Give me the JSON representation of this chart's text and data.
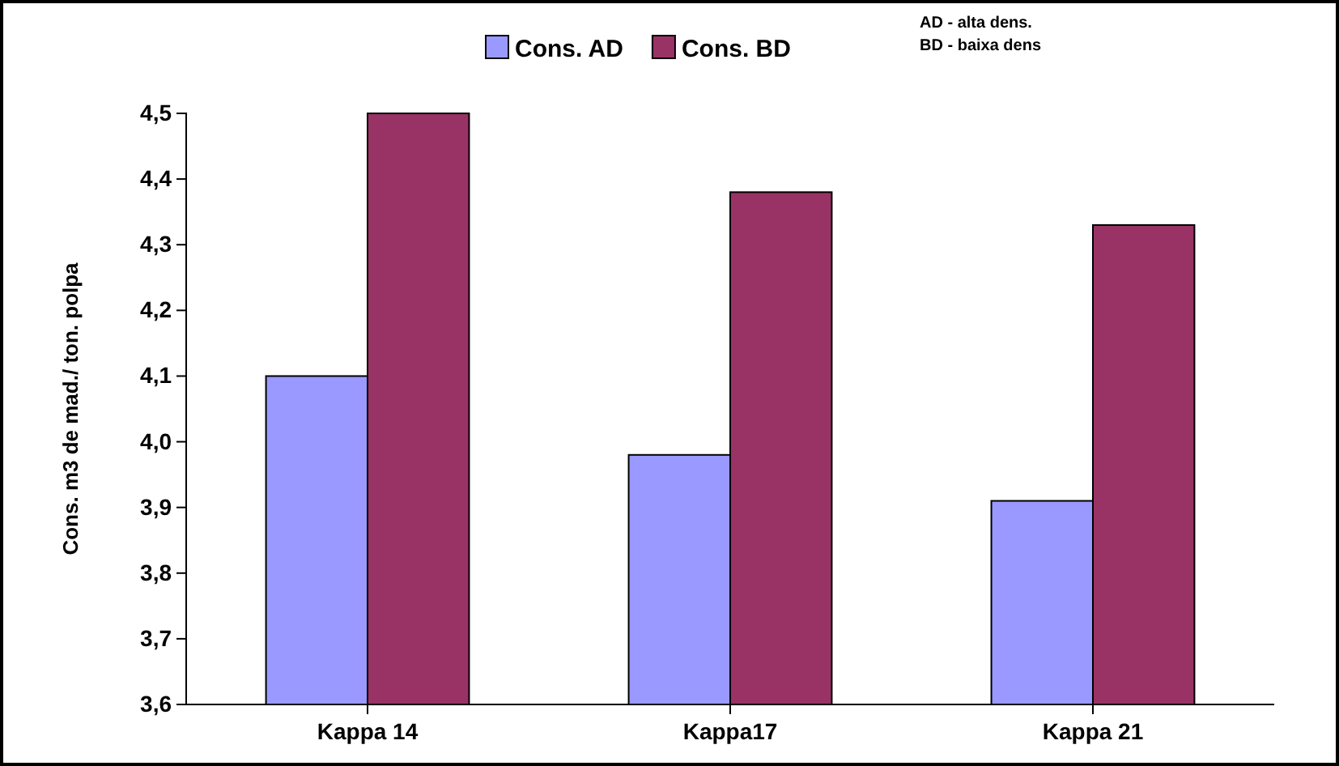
{
  "chart_data": {
    "type": "bar",
    "categories": [
      "Kappa 14",
      "Kappa17",
      "Kappa 21"
    ],
    "series": [
      {
        "name": "Cons. AD",
        "color": "#9999ff",
        "values": [
          4.1,
          3.98,
          3.91
        ]
      },
      {
        "name": "Cons. BD",
        "color": "#993366",
        "values": [
          4.5,
          4.38,
          4.33
        ]
      }
    ],
    "ylabel": "Cons. m3 de mad./ ton. polpa",
    "ylim": [
      3.6,
      4.5
    ],
    "yticks": [
      {
        "value": 3.6,
        "label": "3,6"
      },
      {
        "value": 3.7,
        "label": "3,7"
      },
      {
        "value": 3.8,
        "label": "3,8"
      },
      {
        "value": 3.9,
        "label": "3,9"
      },
      {
        "value": 4.0,
        "label": "4,0"
      },
      {
        "value": 4.1,
        "label": "4,1"
      },
      {
        "value": 4.2,
        "label": "4,2"
      },
      {
        "value": 4.3,
        "label": "4,3"
      },
      {
        "value": 4.4,
        "label": "4,4"
      },
      {
        "value": 4.5,
        "label": "4,5"
      }
    ],
    "annotations": [
      "AD - alta dens.",
      "BD - baixa dens"
    ],
    "legend": "top",
    "grid": false
  }
}
